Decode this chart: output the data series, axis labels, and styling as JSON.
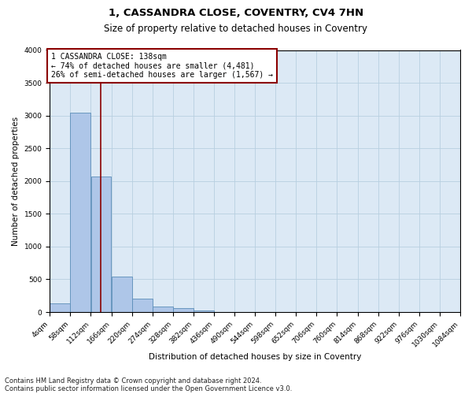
{
  "title": "1, CASSANDRA CLOSE, COVENTRY, CV4 7HN",
  "subtitle": "Size of property relative to detached houses in Coventry",
  "xlabel": "Distribution of detached houses by size in Coventry",
  "ylabel": "Number of detached properties",
  "footer_line1": "Contains HM Land Registry data © Crown copyright and database right 2024.",
  "footer_line2": "Contains public sector information licensed under the Open Government Licence v3.0.",
  "annotation_title": "1 CASSANDRA CLOSE: 138sqm",
  "annotation_line1": "← 74% of detached houses are smaller (4,481)",
  "annotation_line2": "26% of semi-detached houses are larger (1,567) →",
  "property_size": 138,
  "bin_edges": [
    4,
    58,
    112,
    166,
    220,
    274,
    328,
    382,
    436,
    490,
    544,
    598,
    652,
    706,
    760,
    814,
    868,
    922,
    976,
    1030,
    1084
  ],
  "bar_heights": [
    130,
    3040,
    2070,
    540,
    200,
    80,
    55,
    30,
    0,
    0,
    0,
    0,
    0,
    0,
    0,
    0,
    0,
    0,
    0,
    0
  ],
  "bar_color": "#aec6e8",
  "bar_edge_color": "#5b8db8",
  "vline_color": "#8B0000",
  "vline_x": 138,
  "ylim": [
    0,
    4000
  ],
  "yticks": [
    0,
    500,
    1000,
    1500,
    2000,
    2500,
    3000,
    3500,
    4000
  ],
  "annotation_box_color": "#8B0000",
  "background_color": "#ffffff",
  "axes_bg_color": "#dce9f5",
  "grid_color": "#b8cfe0",
  "title_fontsize": 9.5,
  "subtitle_fontsize": 8.5,
  "axis_label_fontsize": 7.5,
  "tick_fontsize": 6.5,
  "annotation_fontsize": 7,
  "footer_fontsize": 6
}
